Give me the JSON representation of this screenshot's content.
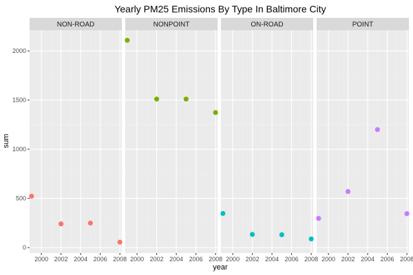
{
  "chart_data": {
    "type": "scatter",
    "title": "Yearly PM25 Emissions By Type In Baltimore City",
    "xlabel": "year",
    "ylabel": "sum",
    "x_ticks": [
      2000,
      2002,
      2004,
      2006,
      2008
    ],
    "y_ticks": [
      0,
      500,
      1000,
      1500,
      2000
    ],
    "xlim": [
      1998.8,
      2008.2
    ],
    "ylim": [
      -55,
      2210
    ],
    "grid": true,
    "legend": "none",
    "facet_style": "facet_grid (one panel per type)",
    "panels": [
      {
        "name": "NON-ROAD",
        "color": "#F8766D",
        "points": [
          {
            "x": 1999,
            "y": 522
          },
          {
            "x": 2002,
            "y": 241
          },
          {
            "x": 2005,
            "y": 249
          },
          {
            "x": 2008,
            "y": 55
          }
        ]
      },
      {
        "name": "NONPOINT",
        "color": "#7CAE00",
        "points": [
          {
            "x": 1999,
            "y": 2108
          },
          {
            "x": 2002,
            "y": 1510
          },
          {
            "x": 2005,
            "y": 1510
          },
          {
            "x": 2008,
            "y": 1373
          }
        ]
      },
      {
        "name": "ON-ROAD",
        "color": "#00BFC4",
        "points": [
          {
            "x": 1999,
            "y": 347
          },
          {
            "x": 2002,
            "y": 134
          },
          {
            "x": 2005,
            "y": 131
          },
          {
            "x": 2008,
            "y": 88
          }
        ]
      },
      {
        "name": "POINT",
        "color": "#C77CFF",
        "points": [
          {
            "x": 1999,
            "y": 297
          },
          {
            "x": 2002,
            "y": 570
          },
          {
            "x": 2005,
            "y": 1200
          },
          {
            "x": 2008,
            "y": 345
          }
        ]
      }
    ],
    "colors": {
      "panel_background": "#EBEBEB",
      "strip_background": "#D9D9D9",
      "grid_major": "#FFFFFF",
      "grid_minor": "#F2F2F2",
      "tick_text": "#4D4D4D"
    }
  }
}
